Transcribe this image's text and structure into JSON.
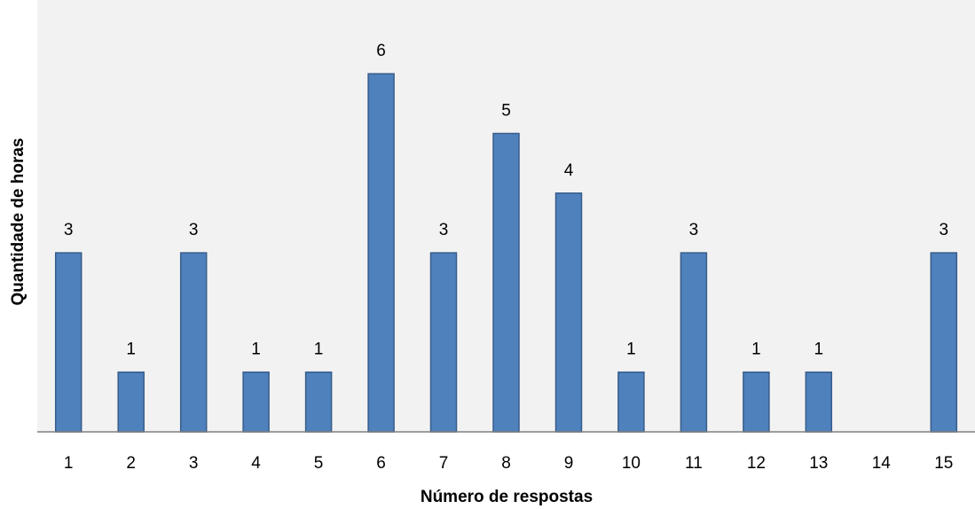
{
  "chart_data": {
    "type": "bar",
    "categories": [
      "1",
      "2",
      "3",
      "4",
      "5",
      "6",
      "7",
      "8",
      "9",
      "10",
      "11",
      "12",
      "13",
      "14",
      "15"
    ],
    "values": [
      3,
      1,
      3,
      1,
      1,
      6,
      3,
      5,
      4,
      1,
      3,
      1,
      1,
      0,
      3
    ],
    "data_labels": [
      "3",
      "1",
      "3",
      "1",
      "1",
      "6",
      "3",
      "5",
      "4",
      "1",
      "3",
      "1",
      "1",
      "",
      "3"
    ],
    "title": "",
    "xlabel": "Número de respostas",
    "ylabel": "Quantidade de horas",
    "ylim": [
      0,
      6.5
    ],
    "grid": false,
    "legend": "none",
    "colors": {
      "bar_fill": "#4f81bd",
      "bar_stroke": "#385d8a",
      "plot_background": "#f2f2f2",
      "axis": "#808080"
    }
  }
}
